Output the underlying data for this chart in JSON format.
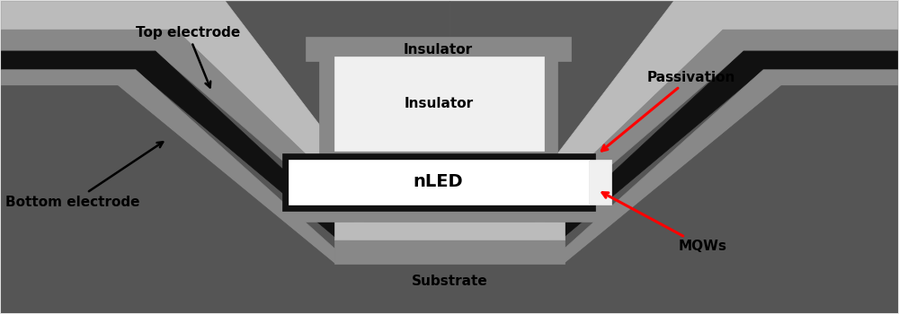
{
  "bg_color": "#e0e0e0",
  "colors": {
    "dark_gray": "#555555",
    "mid_gray": "#888888",
    "light_gray": "#bbbbbb",
    "black": "#111111",
    "white": "#ffffff",
    "near_white": "#f0f0f0",
    "red": "#ff0000"
  },
  "labels": {
    "top_electrode": "Top electrode",
    "insulator_top": "Insulator",
    "insulator_inner": "Insulator",
    "nled": "nLED",
    "bottom_electrode": "Bottom electrode",
    "substrate": "Substrate",
    "passivation": "Passivation",
    "mqws": "MQWs"
  }
}
